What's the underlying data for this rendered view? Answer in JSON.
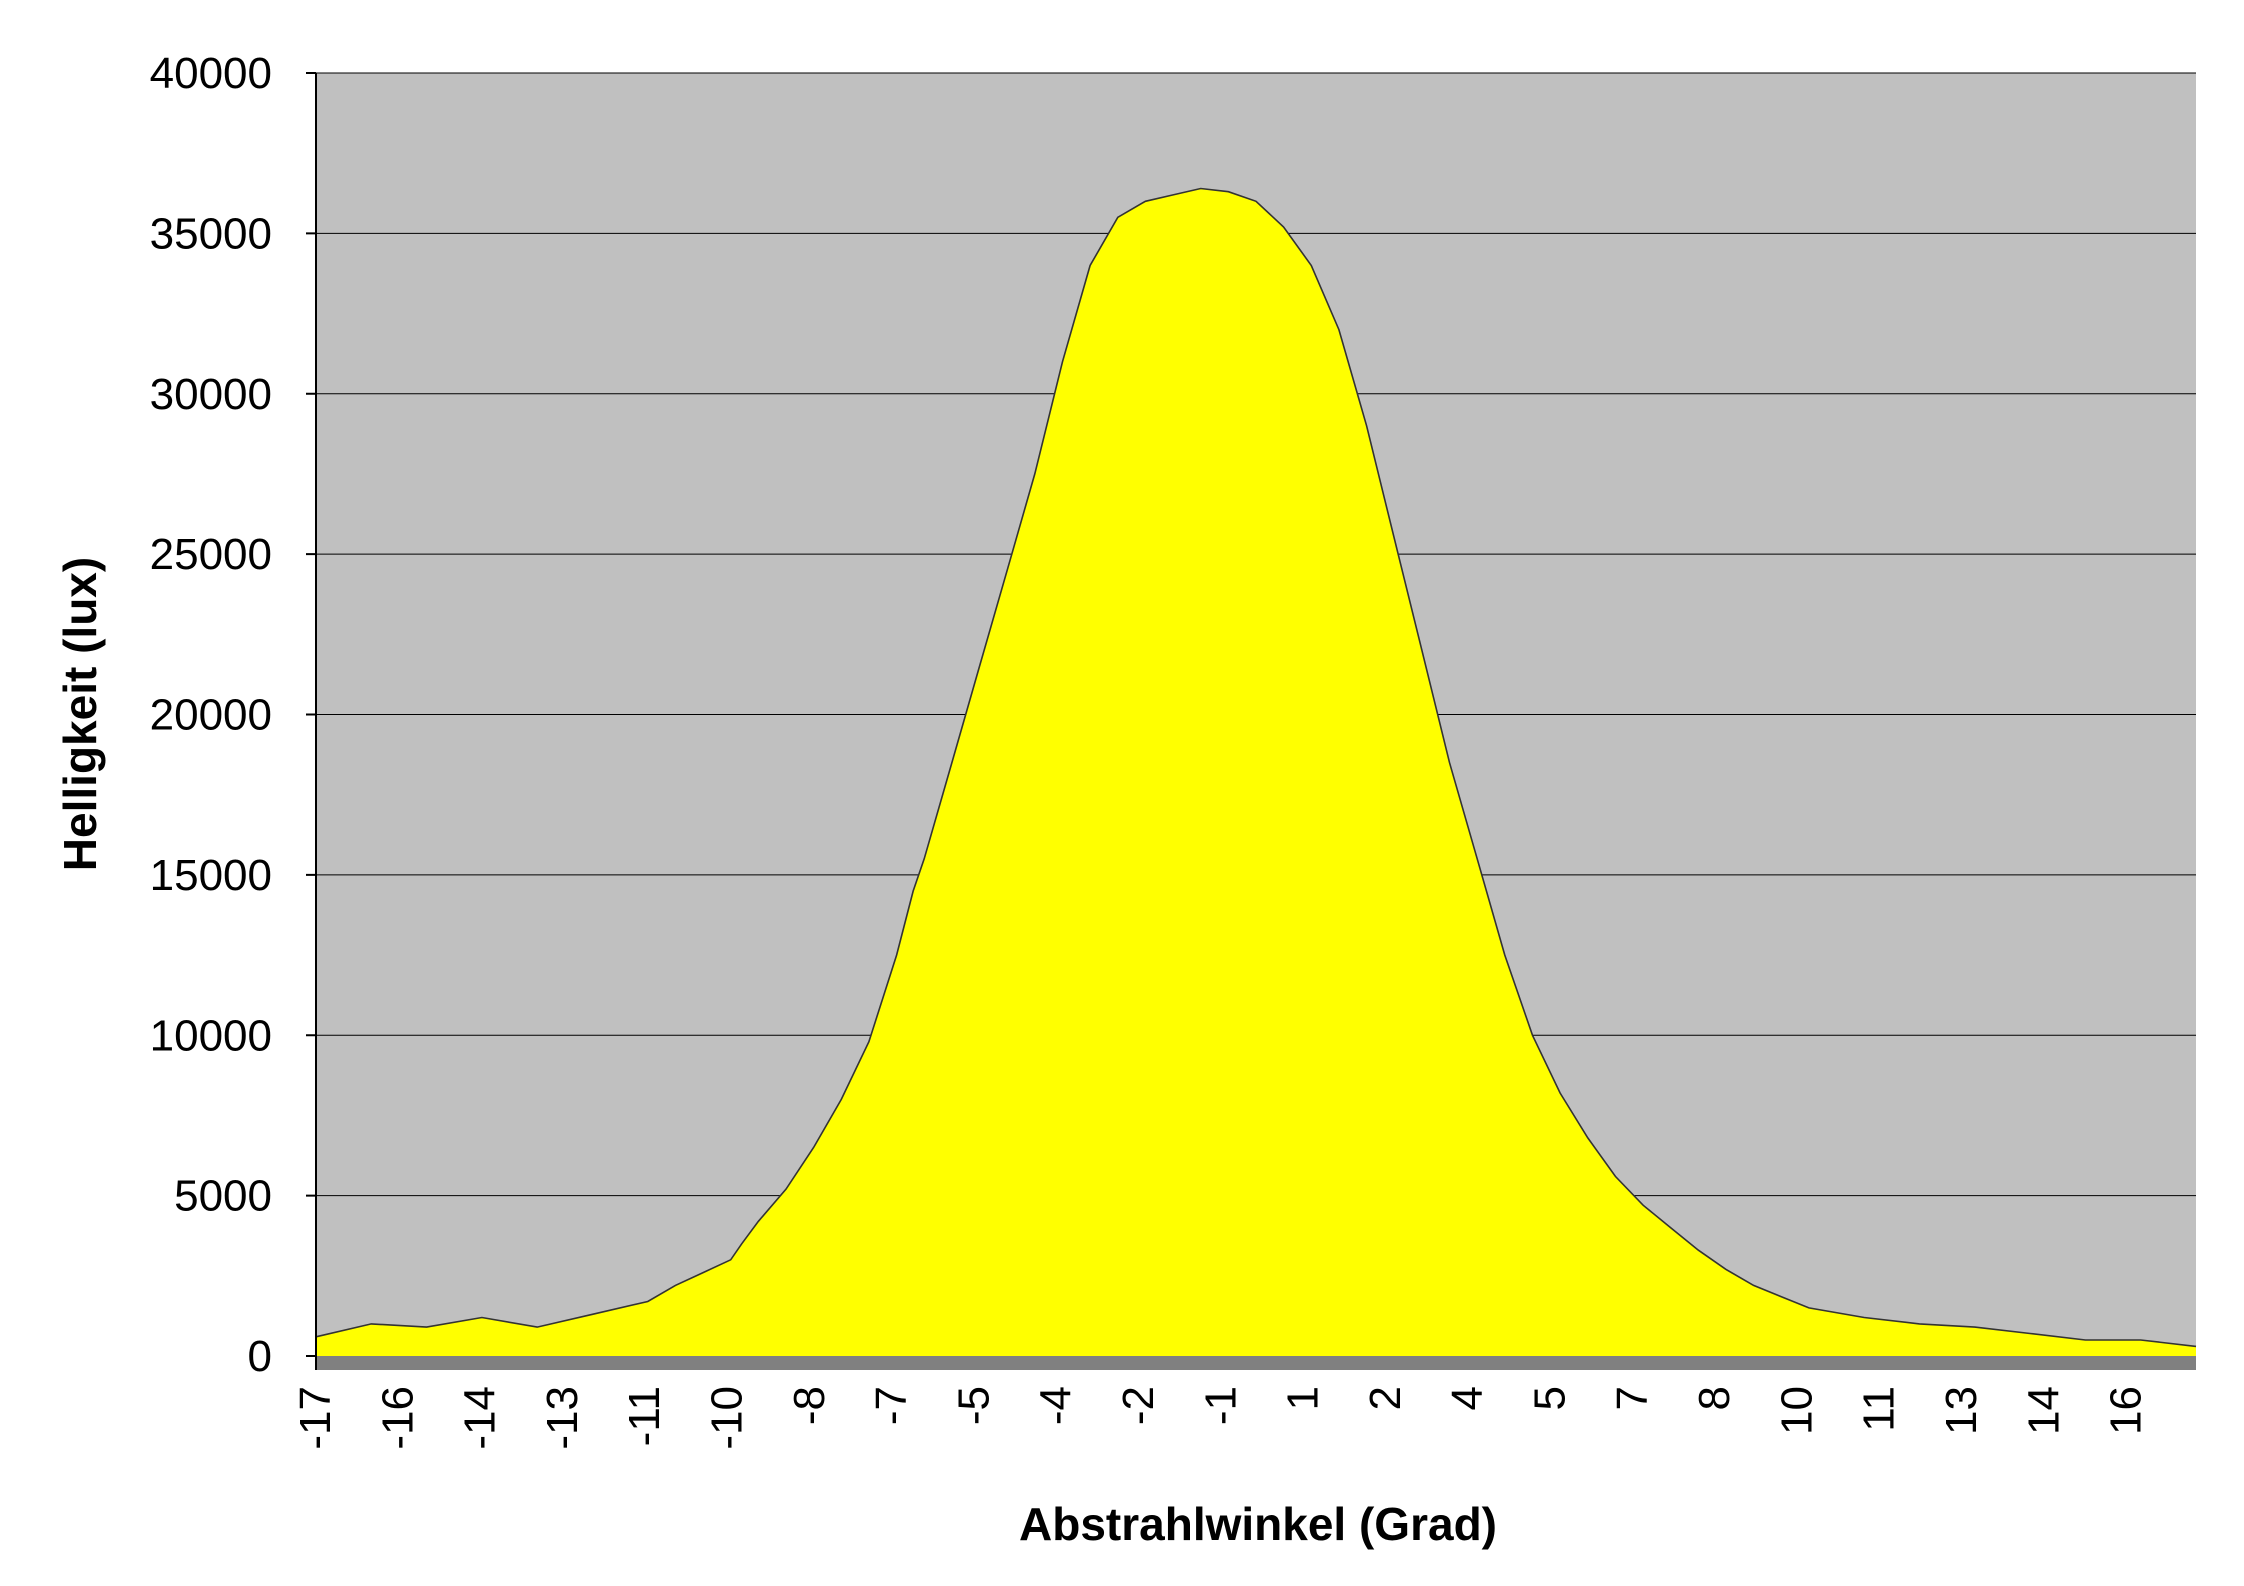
{
  "chart_data": {
    "type": "area",
    "title": "",
    "xlabel": "Abstrahlwinkel (Grad)",
    "ylabel": "Helligkeit (lux)",
    "ylim": [
      0,
      40000
    ],
    "xlim": [
      -17,
      17
    ],
    "grid": true,
    "legend": "none",
    "y_ticks": [
      "0",
      "5000",
      "10000",
      "15000",
      "20000",
      "25000",
      "30000",
      "35000",
      "40000"
    ],
    "x_tick_labels": [
      "-17",
      "-16",
      "-14",
      "-13",
      "-11",
      "-10",
      "-8",
      "-7",
      "-5",
      "-4",
      "-2",
      "-1",
      "1",
      "2",
      "4",
      "5",
      "7",
      "8",
      "10",
      "11",
      "13",
      "14",
      "16"
    ],
    "colors": {
      "fill": "#ffff00",
      "line": "#333333",
      "plot_background": "#c0c0c0",
      "floor": "#808080",
      "gridline": "#000000"
    },
    "series": [
      {
        "x": [
          -17,
          -16,
          -15,
          -14,
          -13,
          -12,
          -11,
          -10.5,
          -10,
          -9.5,
          -9.3,
          -9,
          -8.5,
          -8,
          -7.5,
          -7,
          -6.5,
          -6.2,
          -6,
          -5.5,
          -5,
          -4.5,
          -4,
          -3.5,
          -3,
          -2.5,
          -2,
          -1.5,
          -1,
          -0.5,
          0,
          0.5,
          1,
          1.5,
          2,
          2.5,
          3,
          3.5,
          4,
          4.5,
          5,
          5.5,
          6,
          6.5,
          7,
          7.5,
          8,
          8.5,
          9,
          10,
          11,
          12,
          13,
          14,
          15,
          16,
          17
        ],
        "y": [
          600,
          1000,
          900,
          1200,
          900,
          1300,
          1700,
          2200,
          2600,
          3000,
          3500,
          4200,
          5200,
          6500,
          8000,
          9800,
          12500,
          14500,
          15500,
          18500,
          21500,
          24500,
          27500,
          31000,
          34000,
          35500,
          36000,
          36200,
          36400,
          36300,
          36000,
          35200,
          34000,
          32000,
          29000,
          25500,
          22000,
          18500,
          15500,
          12500,
          10000,
          8200,
          6800,
          5600,
          4700,
          4000,
          3300,
          2700,
          2200,
          1500,
          1200,
          1000,
          900,
          700,
          500,
          500,
          300
        ]
      }
    ]
  }
}
